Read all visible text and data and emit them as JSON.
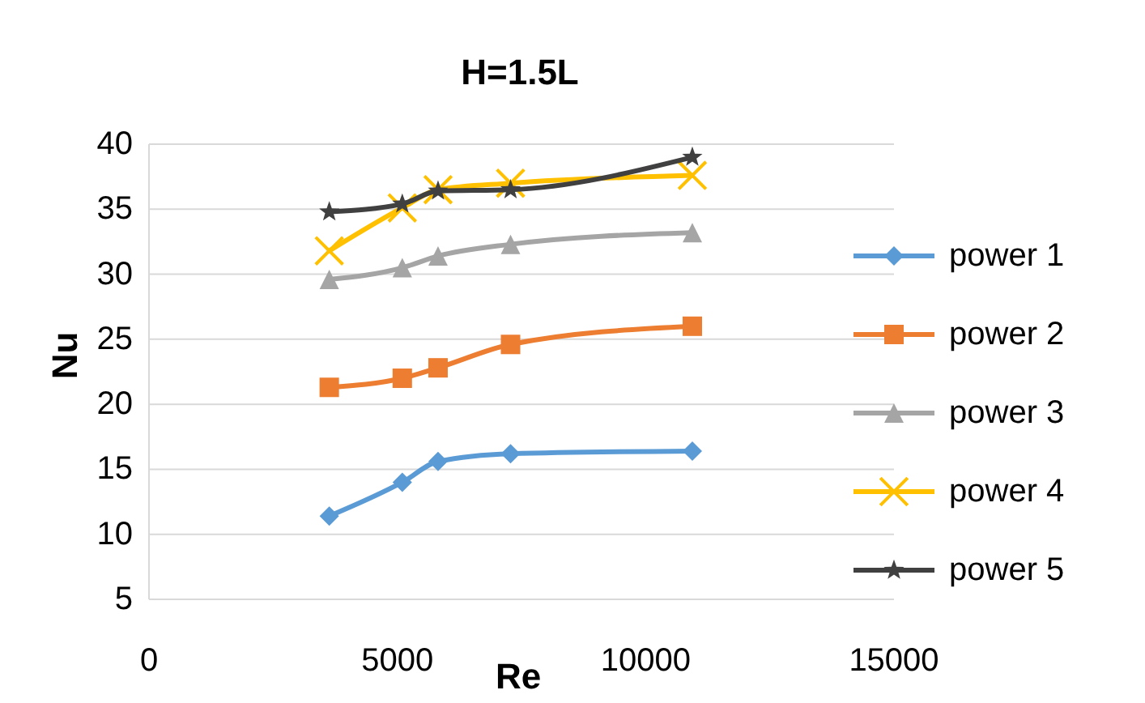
{
  "chart_data": {
    "type": "line",
    "title": "H=1.5L",
    "xlabel": "Re",
    "ylabel": "Nu",
    "xlim": [
      0,
      15000
    ],
    "xticks": [
      0,
      5000,
      10000,
      15000
    ],
    "ylim": [
      5,
      40
    ],
    "yticks": [
      5,
      10,
      15,
      20,
      25,
      30,
      35,
      40
    ],
    "grid": "y",
    "legend": "right",
    "series": [
      {
        "name": "power 1",
        "color": "#5b9bd5",
        "marker": "diamond",
        "x": [
          3630,
          5100,
          5820,
          7280,
          10940
        ],
        "values": [
          11.4,
          14.0,
          15.6,
          16.2,
          16.4
        ]
      },
      {
        "name": "power 2",
        "color": "#ed7d31",
        "marker": "square",
        "x": [
          3630,
          5100,
          5820,
          7280,
          10940
        ],
        "values": [
          21.3,
          22.0,
          22.8,
          24.6,
          26.0
        ]
      },
      {
        "name": "power 3",
        "color": "#a5a5a5",
        "marker": "triangle",
        "x": [
          3630,
          5100,
          5820,
          7280,
          10940
        ],
        "values": [
          29.6,
          30.5,
          31.4,
          32.3,
          33.2
        ]
      },
      {
        "name": "power 4",
        "color": "#ffc000",
        "marker": "cross",
        "x": [
          3630,
          5100,
          5820,
          7280,
          10940
        ],
        "values": [
          31.8,
          35.1,
          36.5,
          37.0,
          37.6
        ]
      },
      {
        "name": "power 5",
        "color": "#404040",
        "marker": "star",
        "x": [
          3630,
          5100,
          5820,
          7280,
          10940
        ],
        "values": [
          34.8,
          35.4,
          36.4,
          36.5,
          39.0
        ]
      }
    ]
  }
}
